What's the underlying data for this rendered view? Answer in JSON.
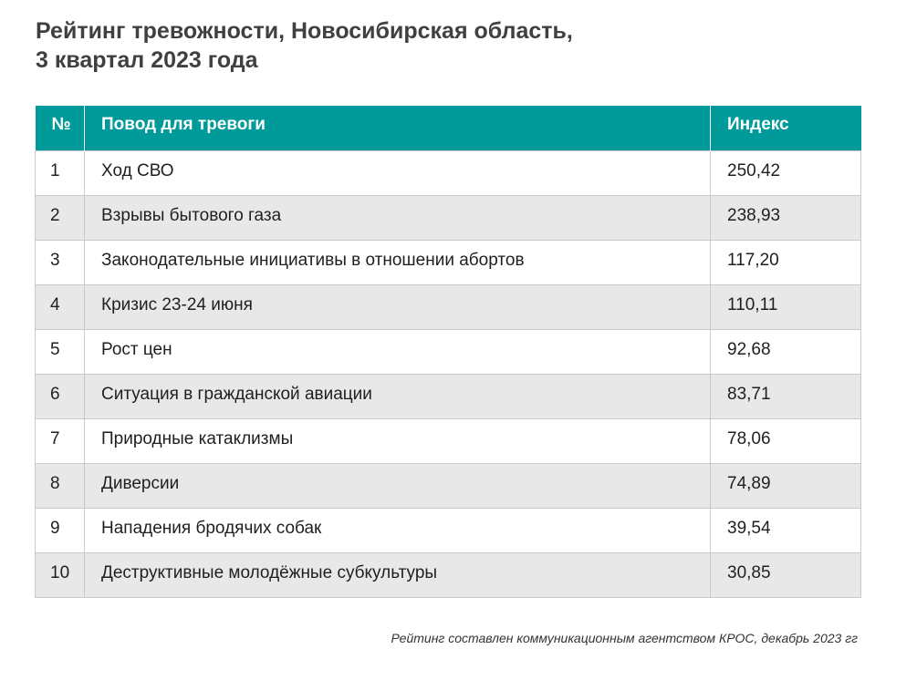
{
  "title": {
    "line1": "Рейтинг тревожности, Новосибирская область,",
    "line2": "3 квартал 2023 года"
  },
  "table": {
    "headers": {
      "num": "№",
      "reason": "Повод для тревоги",
      "index": "Индекс"
    },
    "rows": [
      {
        "num": "1",
        "reason": "Ход СВО",
        "index": "250,42"
      },
      {
        "num": "2",
        "reason": "Взрывы бытового газа",
        "index": "238,93"
      },
      {
        "num": "3",
        "reason": "Законодательные инициативы в отношении абортов",
        "index": "117,20"
      },
      {
        "num": "4",
        "reason": "Кризис 23-24 июня",
        "index": "110,11"
      },
      {
        "num": "5",
        "reason": "Рост цен",
        "index": "92,68"
      },
      {
        "num": "6",
        "reason": "Ситуация в гражданской авиации",
        "index": "83,71"
      },
      {
        "num": "7",
        "reason": "Природные катаклизмы",
        "index": "78,06"
      },
      {
        "num": "8",
        "reason": "Диверсии",
        "index": "74,89"
      },
      {
        "num": "9",
        "reason": "Нападения бродячих собак",
        "index": "39,54"
      },
      {
        "num": "10",
        "reason": "Деструктивные молодёжные субкультуры",
        "index": "30,85"
      }
    ]
  },
  "footnote": "Рейтинг составлен коммуникационным агентством КРОС, декабрь 2023 гг",
  "colors": {
    "header_bg": "#009a9a",
    "header_text": "#ffffff",
    "stripe_bg": "#e8e8e8",
    "title_text": "#404040"
  }
}
